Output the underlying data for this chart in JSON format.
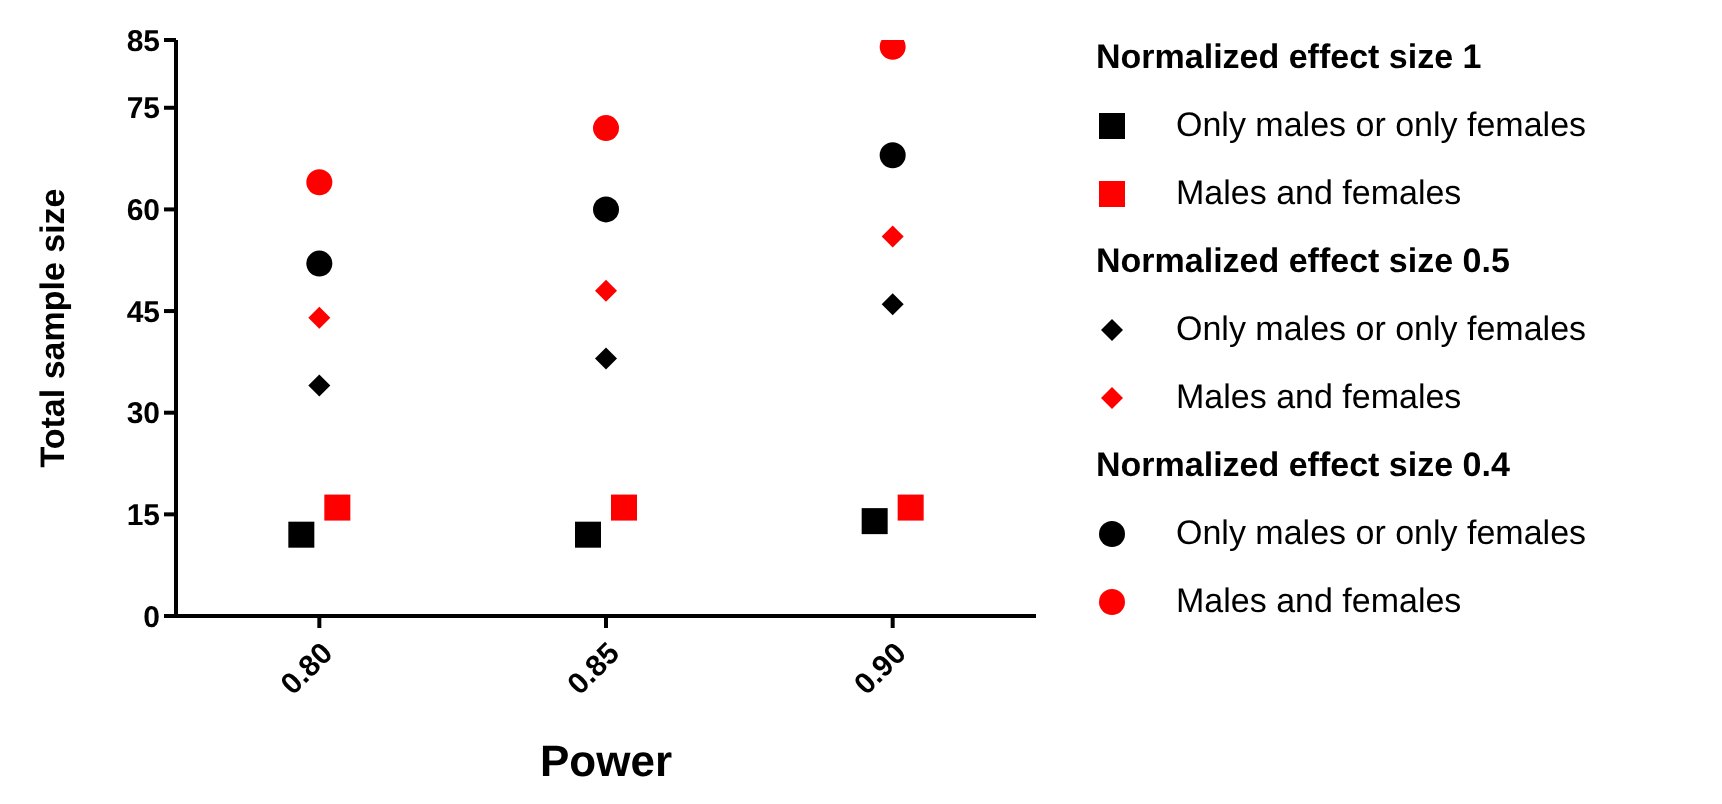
{
  "chart_data": {
    "type": "scatter",
    "xlabel": "Power",
    "ylabel": "Total sample size",
    "categories": [
      "0.80",
      "0.85",
      "0.90"
    ],
    "ylim": [
      0,
      85
    ],
    "yticks": [
      0,
      15,
      30,
      45,
      60,
      75,
      85
    ],
    "grid": false,
    "legend": "right",
    "legend_title": [
      "Normalized effect size 1",
      "Normalized effect size 0.5",
      "Normalized effect size 0.4"
    ],
    "series": [
      {
        "name": "Only males or only females",
        "color": "#000000",
        "marker": "square",
        "values": [
          12,
          12,
          14
        ]
      },
      {
        "name": "Males and females",
        "color": "#ff0000",
        "marker": "square",
        "values": [
          16,
          16,
          16
        ]
      },
      {
        "name": "Only males or only females",
        "color": "#000000",
        "marker": "diamond",
        "values": [
          34,
          38,
          46
        ]
      },
      {
        "name": "Males and females",
        "color": "#ff0000",
        "marker": "diamond",
        "values": [
          44,
          48,
          56
        ]
      },
      {
        "name": "Only males or only females",
        "color": "#000000",
        "marker": "circle",
        "values": [
          52,
          60,
          68
        ]
      },
      {
        "name": "Males and females",
        "color": "#ff0000",
        "marker": "circle",
        "values": [
          64,
          72,
          84
        ]
      }
    ]
  }
}
